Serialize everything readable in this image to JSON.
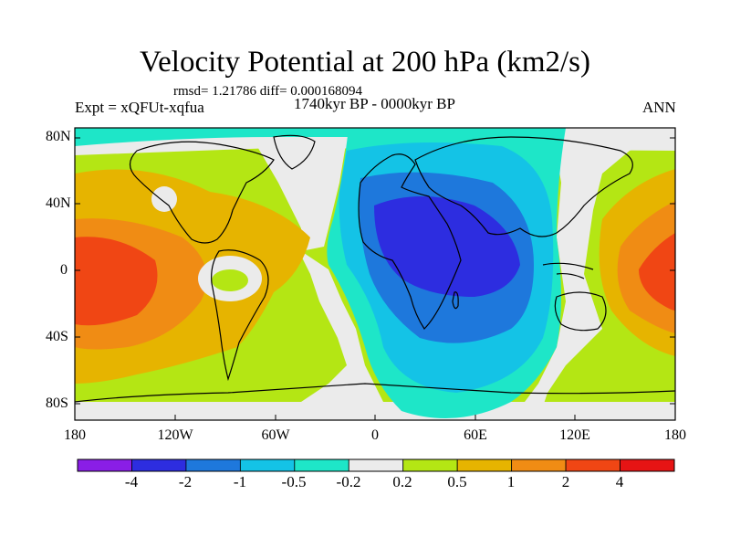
{
  "title": "Velocity Potential at 200 hPa (km2/s)",
  "stats": "rmsd= 1.21786  diff= 0.000168094",
  "expt": "Expt = xQFUt-xqfua",
  "period": "1740kyr BP - 0000kyr BP",
  "season": "ANN",
  "y_ticks": [
    "80N",
    "40N",
    "0",
    "40S",
    "80S"
  ],
  "x_ticks": [
    "180",
    "120W",
    "60W",
    "0",
    "60E",
    "120E",
    "180"
  ],
  "colorbar": {
    "labels": [
      "-4",
      "-2",
      "-1",
      "-0.5",
      "-0.2",
      "0.2",
      "0.5",
      "1",
      "2",
      "4"
    ],
    "colors": [
      "#8a1ee6",
      "#2d2de0",
      "#1e78dc",
      "#14c3e6",
      "#1ee6c8",
      "#ebebeb",
      "#b4e614",
      "#e6b400",
      "#f08c14",
      "#f04614",
      "#e61414"
    ]
  },
  "field_colors": {
    "land_outline": "#000000",
    "ocean_bg": "#b4e614"
  }
}
